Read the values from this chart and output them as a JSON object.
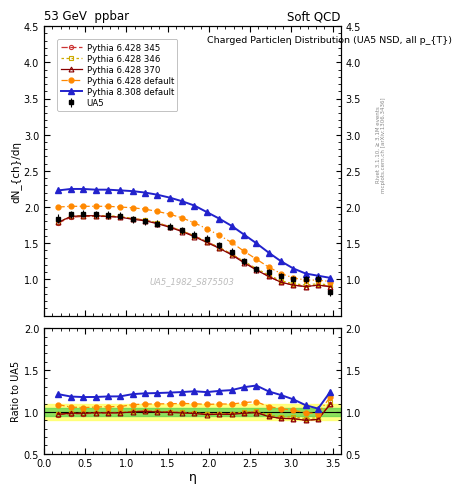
{
  "title_left": "53 GeV  ppbar",
  "title_right": "Soft QCD",
  "plot_title": "Charged Particleη Distribution (UA5 NSD, all p_{T})",
  "ylabel_main": "dN_{ch}/dη",
  "ylabel_ratio": "Ratio to UA5",
  "xlabel": "η",
  "watermark": "UA5_1982_S875503",
  "right_label": "Rivet 3.1.10, ≥ 3.1M events",
  "right_label2": "mcplots.cern.ch [arXiv:1306.3436]",
  "eta": [
    0.175,
    0.325,
    0.475,
    0.625,
    0.775,
    0.925,
    1.075,
    1.225,
    1.375,
    1.525,
    1.675,
    1.825,
    1.975,
    2.125,
    2.275,
    2.425,
    2.575,
    2.725,
    2.875,
    3.025,
    3.175,
    3.325,
    3.475
  ],
  "ua5": [
    1.84,
    1.9,
    1.91,
    1.9,
    1.89,
    1.88,
    1.83,
    1.8,
    1.77,
    1.73,
    1.68,
    1.62,
    1.56,
    1.47,
    1.38,
    1.25,
    1.14,
    1.1,
    1.04,
    1.0,
    1.0,
    1.01,
    0.82
  ],
  "ua5_err": [
    0.06,
    0.05,
    0.05,
    0.05,
    0.05,
    0.05,
    0.05,
    0.05,
    0.05,
    0.05,
    0.05,
    0.05,
    0.05,
    0.05,
    0.05,
    0.05,
    0.05,
    0.05,
    0.05,
    0.05,
    0.05,
    0.05,
    0.05
  ],
  "p6_345": [
    1.78,
    1.86,
    1.87,
    1.87,
    1.87,
    1.86,
    1.84,
    1.82,
    1.78,
    1.73,
    1.67,
    1.6,
    1.52,
    1.44,
    1.35,
    1.24,
    1.14,
    1.04,
    0.96,
    0.92,
    0.9,
    0.92,
    0.9
  ],
  "p6_346": [
    1.79,
    1.87,
    1.88,
    1.88,
    1.88,
    1.87,
    1.84,
    1.82,
    1.78,
    1.73,
    1.67,
    1.6,
    1.52,
    1.44,
    1.35,
    1.25,
    1.15,
    1.06,
    0.98,
    0.94,
    0.92,
    0.94,
    0.92
  ],
  "p6_370": [
    1.79,
    1.87,
    1.88,
    1.88,
    1.87,
    1.86,
    1.83,
    1.81,
    1.77,
    1.72,
    1.66,
    1.59,
    1.51,
    1.43,
    1.34,
    1.23,
    1.13,
    1.04,
    0.96,
    0.92,
    0.9,
    0.92,
    0.9
  ],
  "p6_def": [
    2.0,
    2.01,
    2.01,
    2.01,
    2.01,
    2.0,
    1.99,
    1.97,
    1.94,
    1.9,
    1.85,
    1.78,
    1.7,
    1.61,
    1.51,
    1.39,
    1.28,
    1.17,
    1.08,
    1.02,
    0.99,
    0.99,
    0.97
  ],
  "p8_def": [
    2.23,
    2.25,
    2.25,
    2.24,
    2.24,
    2.23,
    2.22,
    2.2,
    2.17,
    2.13,
    2.08,
    2.02,
    1.93,
    1.84,
    1.74,
    1.62,
    1.5,
    1.37,
    1.25,
    1.15,
    1.08,
    1.05,
    1.02
  ],
  "ylim_main": [
    0.5,
    4.5
  ],
  "ylim_ratio": [
    0.5,
    2.0
  ],
  "yticks_main": [
    1.0,
    1.5,
    2.0,
    2.5,
    3.0,
    3.5,
    4.0,
    4.5
  ],
  "yticks_ratio": [
    0.5,
    1.0,
    1.5,
    2.0
  ],
  "xlim": [
    0.0,
    3.6
  ],
  "color_ua5": "#000000",
  "color_p6_345": "#cc3333",
  "color_p6_346": "#ccaa00",
  "color_p6_370": "#880000",
  "color_p6_def": "#ff8800",
  "color_p8_def": "#2222cc",
  "band_yellow": [
    0.9,
    1.1
  ],
  "band_green": [
    0.95,
    1.05
  ]
}
